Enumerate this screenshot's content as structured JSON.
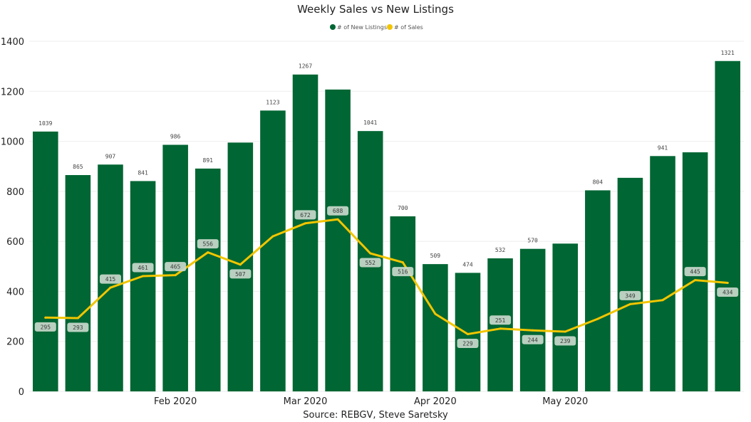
{
  "chart_data": {
    "type": "bar",
    "title": "Weekly Sales vs New Listings",
    "source": "Source: REBGV, Steve Saretsky",
    "legend_position": "top-center",
    "grid": true,
    "ylim": [
      0,
      1400
    ],
    "yticks": [
      "0",
      "200",
      "400",
      "600",
      "800",
      "1000",
      "1200",
      "1400"
    ],
    "x_tick_labels": [
      {
        "label": "Feb 2020",
        "index": 4.5
      },
      {
        "label": "Mar 2020",
        "index": 8.5
      },
      {
        "label": "Apr 2020",
        "index": 12.5
      },
      {
        "label": "May 2020",
        "index": 16.5
      }
    ],
    "series": [
      {
        "name": "# of New Listings",
        "type": "bar",
        "color": "#006633",
        "values": [
          1039,
          865,
          907,
          841,
          986,
          891,
          995,
          1123,
          1267,
          1207,
          1041,
          700,
          509,
          474,
          532,
          570,
          591,
          804,
          854,
          941,
          956,
          1321
        ],
        "labels": [
          "1039",
          "865",
          "907",
          "841",
          "986",
          "891",
          "",
          "1123",
          "1267",
          "",
          "1041",
          "700",
          "509",
          "474",
          "532",
          "570",
          "",
          "804",
          "",
          "941",
          "",
          "1321"
        ]
      },
      {
        "name": "# of Sales",
        "type": "line",
        "color": "#f2c500",
        "values": [
          295,
          293,
          415,
          461,
          465,
          556,
          507,
          620,
          672,
          688,
          552,
          516,
          310,
          229,
          251,
          244,
          239,
          290,
          349,
          365,
          445,
          434
        ],
        "labels": [
          "295",
          "293",
          "415",
          "461",
          "465",
          "556",
          "507",
          "",
          "672",
          "688",
          "552",
          "516",
          "",
          "229",
          "251",
          "244",
          "239",
          "",
          "349",
          "",
          "445",
          "434"
        ],
        "label_side": [
          "below",
          "below",
          "above",
          "above",
          "above",
          "above",
          "below",
          "below",
          "above",
          "above",
          "below",
          "below",
          "below",
          "below",
          "above",
          "below",
          "below",
          "below",
          "above",
          "above",
          "above",
          "below"
        ]
      }
    ]
  }
}
